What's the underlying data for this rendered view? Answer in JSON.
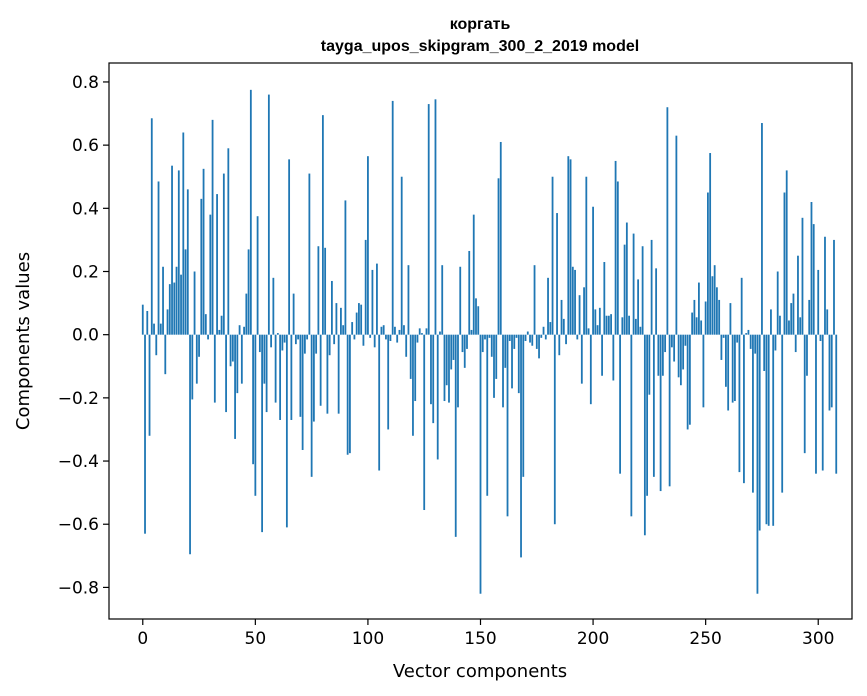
{
  "chart_data": {
    "type": "bar",
    "title": "коргать",
    "subtitle": "tayga_upos_skipgram_300_2_2019 model",
    "xlabel": "Vector components",
    "ylabel": "Components values",
    "xlim": [
      -15,
      315
    ],
    "ylim": [
      -0.9,
      0.86
    ],
    "xticks": [
      0,
      50,
      100,
      150,
      200,
      250,
      300
    ],
    "yticks": [
      -0.8,
      -0.6,
      -0.4,
      -0.2,
      0.0,
      0.2,
      0.4,
      0.6,
      0.8
    ],
    "ytick_labels": [
      "−0.8",
      "−0.6",
      "−0.4",
      "−0.2",
      "0.0",
      "0.2",
      "0.4",
      "0.6",
      "0.8"
    ],
    "grid": false,
    "bar_color": "#1f77b4",
    "series": [
      {
        "values": [
          0.095,
          -0.63,
          0.075,
          -0.32,
          0.685,
          0.035,
          -0.065,
          0.485,
          0.035,
          0.215,
          -0.125,
          0.08,
          0.16,
          0.535,
          0.165,
          0.215,
          0.52,
          0.19,
          0.64,
          0.27,
          0.46,
          -0.695,
          -0.205,
          0.2,
          -0.155,
          -0.07,
          0.43,
          0.525,
          0.065,
          -0.015,
          0.38,
          0.68,
          -0.215,
          0.445,
          0.015,
          0.06,
          0.51,
          -0.245,
          0.59,
          -0.1,
          -0.085,
          -0.33,
          -0.185,
          0.03,
          -0.155,
          0.025,
          0.13,
          0.27,
          0.775,
          -0.41,
          -0.51,
          0.375,
          -0.055,
          -0.625,
          -0.155,
          -0.245,
          0.76,
          -0.04,
          0.18,
          -0.215,
          0.005,
          -0.27,
          -0.05,
          -0.025,
          -0.61,
          0.555,
          -0.27,
          0.13,
          -0.03,
          -0.015,
          -0.26,
          -0.365,
          -0.06,
          -0.015,
          0.51,
          -0.45,
          -0.275,
          -0.06,
          0.28,
          -0.225,
          0.695,
          0.275,
          -0.25,
          -0.065,
          0.17,
          -0.03,
          0.1,
          -0.25,
          0.085,
          0.03,
          0.425,
          -0.38,
          -0.375,
          0.04,
          -0.015,
          0.07,
          0.1,
          0.095,
          -0.035,
          0.3,
          0.565,
          -0.01,
          0.205,
          -0.04,
          0.225,
          -0.43,
          0.025,
          0.03,
          -0.015,
          -0.3,
          -0.02,
          0.74,
          0.025,
          -0.025,
          0.015,
          0.5,
          0.03,
          -0.07,
          0.22,
          -0.14,
          -0.32,
          -0.21,
          -0.025,
          0.02,
          0.005,
          -0.555,
          0.02,
          0.73,
          -0.22,
          -0.28,
          0.745,
          -0.395,
          0.01,
          0.22,
          -0.21,
          -0.16,
          -0.215,
          -0.11,
          -0.08,
          -0.64,
          -0.23,
          0.215,
          -0.055,
          -0.105,
          -0.045,
          0.265,
          0.015,
          0.38,
          0.115,
          0.09,
          -0.82,
          -0.055,
          -0.015,
          -0.51,
          -0.01,
          -0.07,
          -0.2,
          -0.14,
          0.495,
          0.61,
          -0.23,
          -0.105,
          -0.575,
          -0.02,
          -0.17,
          -0.045,
          -0.01,
          -0.185,
          -0.705,
          -0.45,
          -0.02,
          0.01,
          -0.025,
          -0.035,
          0.22,
          -0.045,
          -0.075,
          -0.01,
          0.025,
          -0.015,
          0.18,
          0.04,
          0.5,
          -0.6,
          0.385,
          -0.065,
          0.11,
          0.05,
          -0.03,
          0.565,
          0.555,
          0.215,
          0.205,
          -0.015,
          0.125,
          -0.155,
          0.15,
          0.5,
          0.02,
          -0.22,
          0.405,
          0.08,
          0.03,
          0.085,
          -0.13,
          0.23,
          0.06,
          0.06,
          0.065,
          -0.145,
          0.55,
          0.485,
          -0.44,
          0.055,
          0.285,
          0.355,
          0.06,
          -0.575,
          0.32,
          0.05,
          0.175,
          0.025,
          0.28,
          -0.635,
          -0.51,
          -0.19,
          0.3,
          -0.45,
          0.21,
          -0.13,
          -0.495,
          -0.13,
          -0.055,
          0.72,
          -0.48,
          -0.04,
          -0.085,
          0.63,
          -0.135,
          -0.16,
          -0.11,
          -0.035,
          -0.3,
          -0.285,
          0.07,
          0.11,
          0.055,
          0.165,
          0.045,
          -0.23,
          0.105,
          0.45,
          0.575,
          0.185,
          0.22,
          0.15,
          0.11,
          -0.08,
          -0.01,
          -0.165,
          -0.24,
          0.1,
          -0.215,
          -0.21,
          -0.025,
          -0.435,
          0.18,
          -0.47,
          0.005,
          0.015,
          -0.045,
          -0.5,
          -0.06,
          -0.82,
          -0.62,
          0.67,
          -0.115,
          -0.6,
          -0.605,
          0.08,
          -0.605,
          -0.05,
          0.2,
          0.06,
          -0.5,
          0.45,
          0.52,
          0.045,
          0.1,
          0.13,
          -0.055,
          0.25,
          0.055,
          0.37,
          -0.375,
          -0.13,
          0.11,
          0.42,
          0.35,
          -0.44,
          0.205,
          -0.02,
          -0.43,
          0.31,
          0.08,
          -0.24,
          -0.23,
          0.3,
          -0.44
        ]
      }
    ]
  }
}
